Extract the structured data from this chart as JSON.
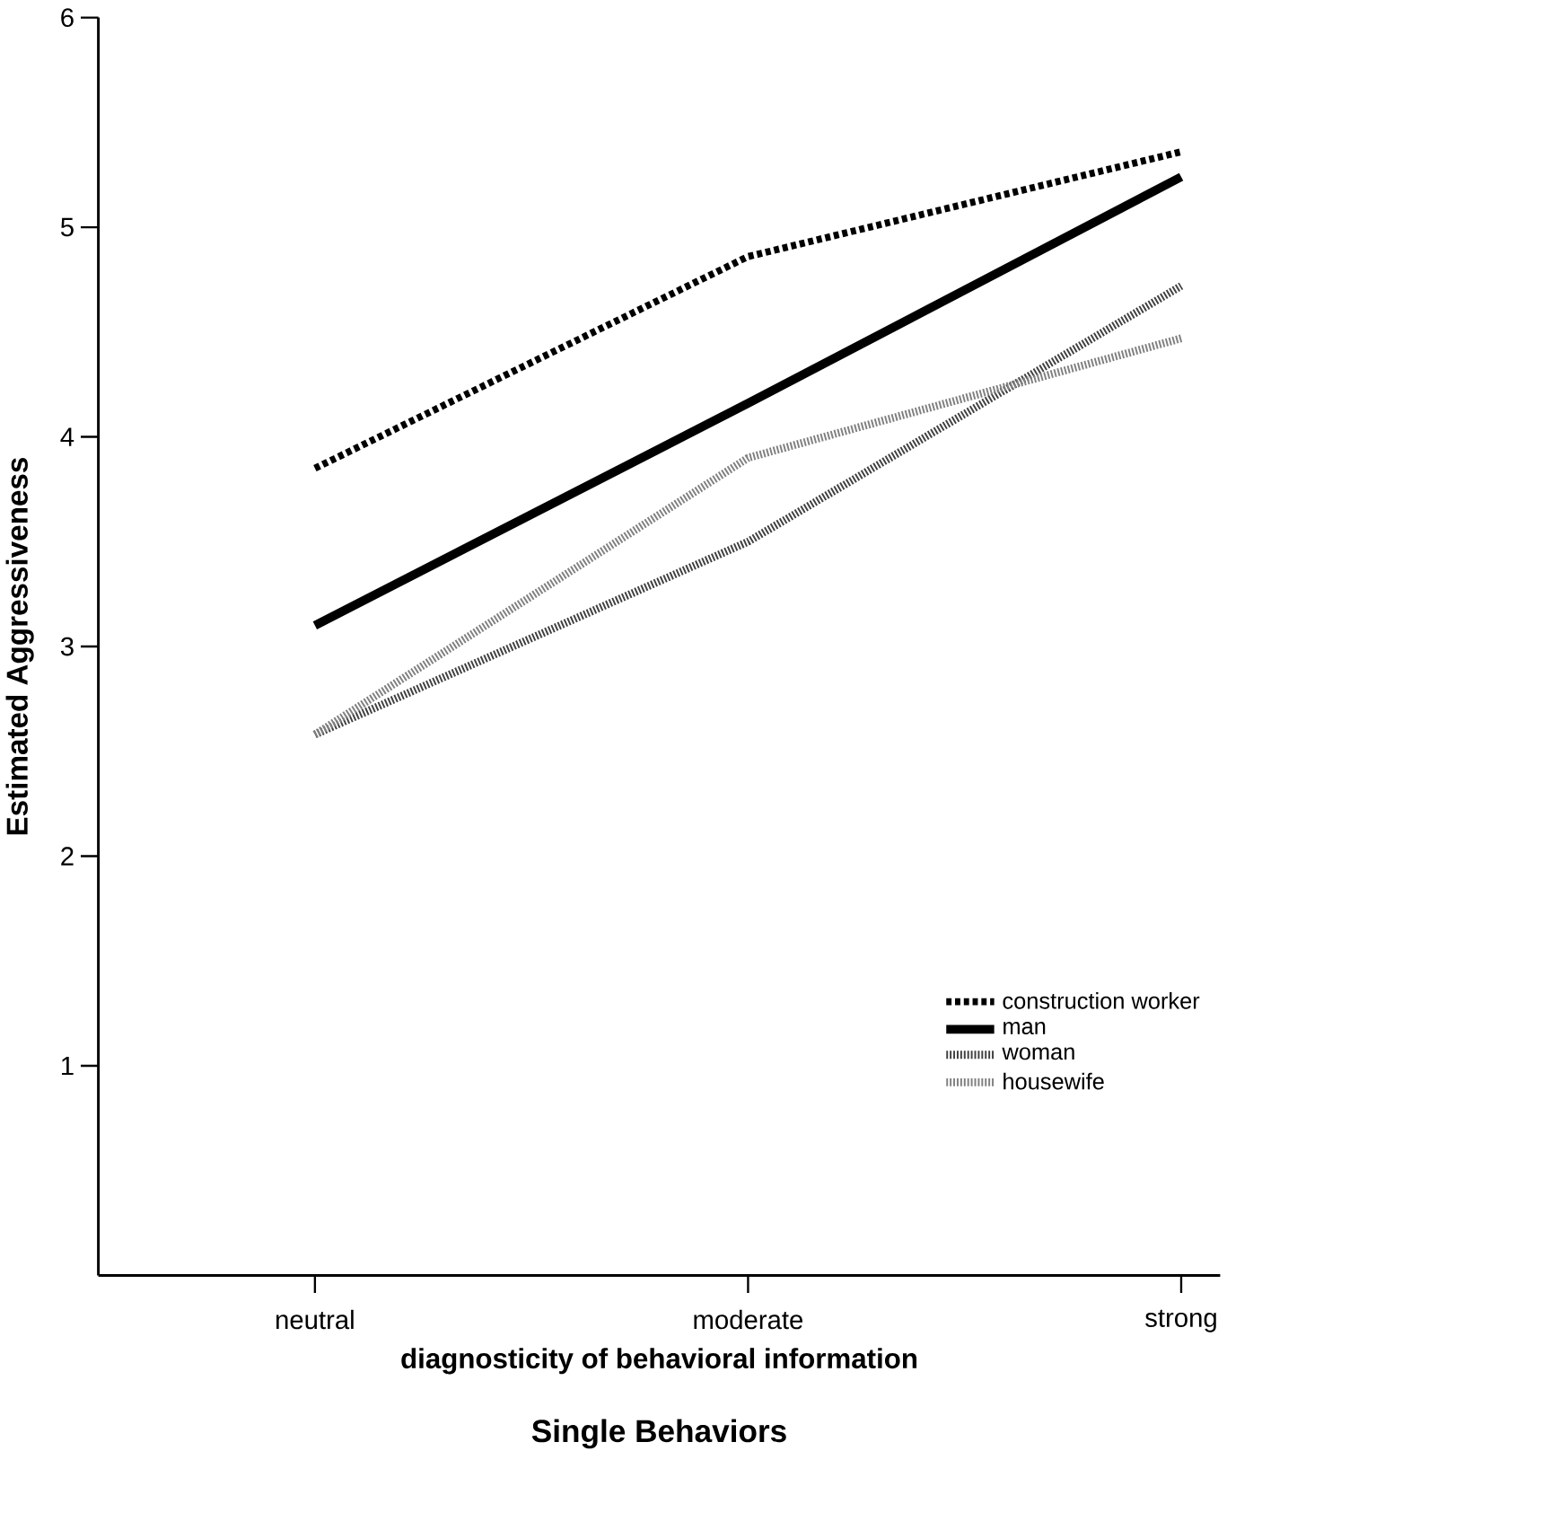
{
  "chart_data": {
    "type": "line",
    "title": "Single Behaviors",
    "xlabel": "diagnosticity of behavioral information",
    "ylabel": "Estimated Aggressiveness",
    "categories": [
      "neutral",
      "moderate",
      "strong"
    ],
    "series": [
      {
        "name": "construction worker",
        "color": "#000000",
        "line_style": "dashed",
        "values": [
          3.85,
          4.86,
          5.36
        ]
      },
      {
        "name": "man",
        "color": "#000000",
        "line_style": "solid",
        "values": [
          3.1,
          4.16,
          5.24
        ]
      },
      {
        "name": "woman",
        "color": "#404040",
        "line_style": "dotted",
        "values": [
          2.58,
          3.5,
          4.72
        ]
      },
      {
        "name": "housewife",
        "color": "#808080",
        "line_style": "dotted",
        "values": [
          2.58,
          3.9,
          4.47
        ]
      }
    ],
    "ylim": [
      0,
      6
    ],
    "yticks": [
      1,
      2,
      3,
      4,
      5,
      6
    ],
    "grid": false,
    "legend": "bottom right",
    "marker": "none"
  }
}
